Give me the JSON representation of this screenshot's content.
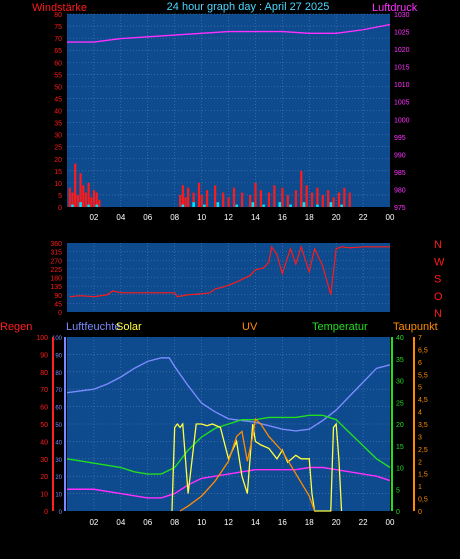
{
  "header": {
    "left_label": "Windstärke",
    "title": "24 hour graph day : April 27 2025",
    "right_label": "Luftdruck"
  },
  "colors": {
    "background": "#000000",
    "plot_bg": "#0d4a8e",
    "grid": "#5a7eb0",
    "wind": "#ff1a1a",
    "gust": "#00e5ff",
    "pressure": "#ff30ff",
    "direction": "#ff1a1a",
    "humidity": "#7b8bff",
    "solar": "#ffff40",
    "uv": "#ff8c00",
    "temperature": "#22dd22",
    "dewpoint": "#ff30ff",
    "rain": "#ff2020",
    "axis_labels": "#ff1a1a"
  },
  "chart_data": [
    {
      "type": "bar",
      "left_axis_label": "Windstärke",
      "right_axis_label": "Luftdruck",
      "x_ticks": [
        "02",
        "04",
        "06",
        "08",
        "10",
        "12",
        "14",
        "16",
        "18",
        "20",
        "22",
        "00"
      ],
      "left_ticks": [
        "80",
        "75",
        "70",
        "65",
        "60",
        "55",
        "50",
        "45",
        "40",
        "35",
        "30",
        "25",
        "20",
        "15",
        "10",
        "5",
        "0"
      ],
      "right_ticks": [
        "1030",
        "1025",
        "1020",
        "1015",
        "1010",
        "1005",
        "1000",
        "995",
        "990",
        "985",
        "980",
        "975"
      ],
      "ylim_left": [
        0,
        80
      ],
      "ylim_right": [
        975,
        1030
      ],
      "series": [
        {
          "kind": "wind",
          "x": [
            0.2,
            0.4,
            0.6,
            0.8,
            1.0,
            1.2,
            1.4,
            1.6,
            1.8,
            2.0,
            2.2,
            2.4,
            8.4,
            8.6,
            8.8,
            9.0,
            9.4,
            9.8,
            10.0,
            10.4,
            11.0,
            11.6,
            12.0,
            12.4,
            13.0,
            13.6,
            14.0,
            14.4,
            15.0,
            15.4,
            16.0,
            16.4,
            17.0,
            17.4,
            17.8,
            18.2,
            18.6,
            19.0,
            19.4,
            19.8,
            20.2,
            20.6,
            21.0
          ],
          "values": [
            8,
            6,
            18,
            5,
            14,
            9,
            6,
            10,
            4,
            7,
            6,
            3,
            5,
            9,
            4,
            8,
            6,
            10,
            5,
            7,
            9,
            6,
            4,
            8,
            6,
            5,
            10,
            7,
            6,
            9,
            8,
            5,
            7,
            15,
            9,
            6,
            8,
            5,
            7,
            4,
            6,
            8,
            6
          ]
        },
        {
          "kind": "gust",
          "x": [
            0.4,
            1.0,
            1.6,
            2.2,
            8.6,
            9.4,
            10.2,
            11.2,
            12.6,
            13.8,
            14.6,
            15.8,
            16.6,
            17.6,
            18.6,
            19.6,
            20.4
          ],
          "values": [
            1,
            2,
            1,
            1,
            1,
            2,
            1,
            2,
            1,
            2,
            1,
            2,
            1,
            2,
            1,
            2,
            1
          ]
        },
        {
          "kind": "pressure",
          "x": [
            0,
            2,
            4,
            6,
            8,
            10,
            12,
            14,
            16,
            18,
            20,
            22,
            24
          ],
          "values": [
            1022,
            1022,
            1023,
            1023.5,
            1024,
            1024.5,
            1025,
            1025,
            1025,
            1024.5,
            1024.5,
            1025.5,
            1027
          ]
        }
      ]
    },
    {
      "type": "line",
      "left_ticks": [
        "360",
        "315",
        "270",
        "225",
        "180",
        "135",
        "90",
        "45",
        "0"
      ],
      "right_ticks": [
        "N",
        "W",
        "S",
        "O",
        "N"
      ],
      "ylim": [
        0,
        360
      ],
      "series": [
        {
          "kind": "direction",
          "x": [
            0.2,
            1.0,
            2.0,
            3.0,
            3.4,
            4.0,
            5.0,
            6.0,
            7.0,
            8.0,
            8.2,
            9.0,
            10.0,
            10.6,
            11.0,
            11.6,
            12.0,
            12.4,
            13.0,
            13.6,
            14.0,
            14.6,
            15.0,
            15.2,
            15.6,
            16.0,
            16.6,
            17.0,
            17.4,
            18.0,
            18.4,
            19.0,
            19.6,
            20.0,
            20.4,
            21.0,
            22.0,
            23.0,
            24.0
          ],
          "values": [
            80,
            85,
            80,
            90,
            110,
            100,
            100,
            100,
            100,
            100,
            80,
            90,
            95,
            100,
            120,
            130,
            140,
            150,
            170,
            190,
            220,
            230,
            260,
            340,
            300,
            200,
            330,
            250,
            340,
            210,
            330,
            240,
            90,
            330,
            340,
            335,
            340,
            340,
            340
          ]
        }
      ]
    },
    {
      "type": "line",
      "series_labels": {
        "rain": "Regen",
        "humidity": "Luftfeuchte",
        "solar": "Solar",
        "uv": "UV",
        "temperature": "Temperatur",
        "dewpoint": "Taupunkt"
      },
      "x_ticks": [
        "02",
        "04",
        "06",
        "08",
        "10",
        "12",
        "14",
        "16",
        "18",
        "20",
        "22",
        "00"
      ],
      "humidity_ticks": [
        "100",
        "90",
        "80",
        "70",
        "60",
        "50",
        "40",
        "30",
        "20",
        "10",
        "0"
      ],
      "humidity_ylim": [
        0,
        100
      ],
      "temperature_ticks": [
        "40",
        "35",
        "30",
        "25",
        "20",
        "15",
        "10",
        "5",
        "0"
      ],
      "temperature_ylim": [
        0,
        40
      ],
      "uv_ticks": [
        "7",
        "6,5",
        "6",
        "5,5",
        "5",
        "4,5",
        "4",
        "3,5",
        "3",
        "2,5",
        "2",
        "1,5",
        "1",
        "0,5",
        "0"
      ],
      "uv_ylim": [
        0,
        7
      ],
      "rain_axis_ticks": [
        "100",
        "90",
        "80",
        "70",
        "60",
        "50",
        "40",
        "30",
        "20",
        "10",
        "0"
      ],
      "series": [
        {
          "kind": "humidity",
          "x": [
            0,
            1,
            2,
            3,
            4,
            5,
            6,
            7,
            7.6,
            8,
            9,
            10,
            11,
            12,
            13,
            14,
            15,
            16,
            17,
            18,
            19,
            20,
            21,
            22,
            23,
            24
          ],
          "values": [
            68,
            69,
            70,
            73,
            77,
            82,
            86,
            88,
            88,
            83,
            72,
            62,
            57,
            53,
            52,
            51,
            49,
            47,
            46,
            47,
            52,
            58,
            66,
            74,
            82,
            84
          ]
        },
        {
          "kind": "temperature",
          "x": [
            0,
            1,
            2,
            3,
            4,
            5,
            6,
            7,
            8,
            9,
            10,
            11,
            12,
            13,
            14,
            15,
            16,
            17,
            18,
            19,
            20,
            21,
            22,
            23,
            24
          ],
          "values": [
            12,
            11.5,
            11,
            10.5,
            10,
            9,
            8.5,
            8.5,
            10,
            14,
            17,
            19,
            20,
            21,
            21,
            21.5,
            21.5,
            21.5,
            22,
            22,
            21,
            18,
            15,
            12,
            10
          ]
        },
        {
          "kind": "dewpoint",
          "x": [
            0,
            1,
            2,
            3,
            4,
            5,
            6,
            7,
            8,
            9,
            10,
            11,
            12,
            13,
            14,
            15,
            16,
            17,
            18,
            19,
            20,
            21,
            22,
            23,
            24
          ],
          "values": [
            5,
            5,
            5,
            4.5,
            4,
            3.5,
            3,
            3,
            4,
            6,
            7.5,
            8,
            8.5,
            9,
            9.5,
            9.5,
            9.5,
            9.5,
            10,
            10,
            9.5,
            9,
            8.5,
            8,
            7
          ]
        },
        {
          "kind": "solar",
          "x": [
            7.8,
            8.0,
            8.2,
            8.4,
            8.6,
            9.0,
            9.6,
            10.0,
            10.4,
            10.8,
            11.4,
            12.0,
            12.6,
            13.0,
            13.4,
            13.8,
            14.0,
            14.4,
            15.0,
            15.6,
            16.0,
            16.4,
            17.0,
            17.4,
            18.0,
            18.2,
            18.4,
            19.6,
            19.8,
            20.0,
            20.2,
            20.4
          ],
          "values": [
            0,
            48,
            50,
            48,
            50,
            10,
            50,
            50,
            49,
            50,
            48,
            30,
            40,
            20,
            10,
            50,
            40,
            38,
            36,
            30,
            35,
            28,
            32,
            30,
            30,
            10,
            0,
            0,
            48,
            50,
            30,
            0
          ]
        },
        {
          "kind": "uv",
          "x": [
            8.4,
            9.0,
            10.0,
            11.0,
            12.0,
            12.6,
            13.0,
            13.4,
            13.8,
            14.0,
            14.4,
            15.0,
            16.0,
            17.0,
            18.0,
            18.4
          ],
          "values": [
            0,
            0.2,
            0.6,
            1.2,
            2.0,
            3.0,
            3.2,
            2.0,
            3.0,
            3.7,
            3.5,
            3.0,
            2.4,
            1.5,
            0.6,
            0
          ]
        }
      ]
    }
  ]
}
